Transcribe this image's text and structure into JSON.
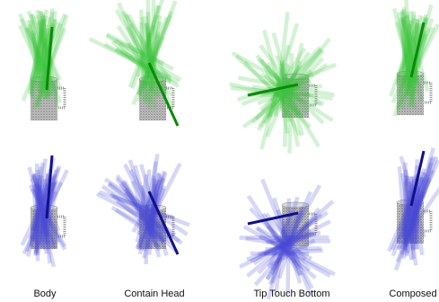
{
  "captions": [
    "Body",
    "Contain Head",
    "Tip Touch Bottom",
    "Composed"
  ]
}
